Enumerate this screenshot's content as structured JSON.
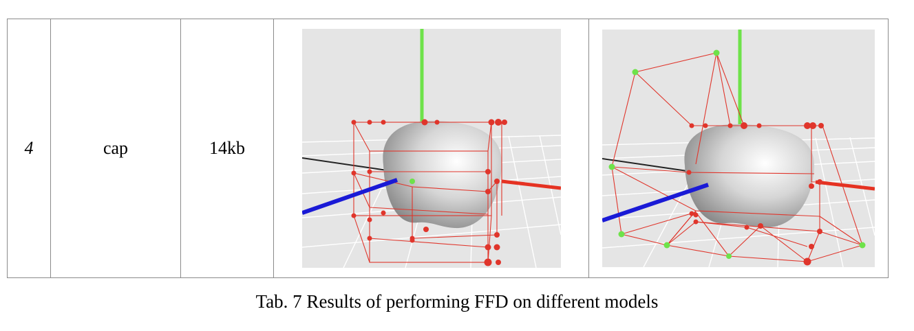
{
  "table": {
    "row": {
      "id": "4",
      "name": "cap",
      "size": "14kb"
    },
    "images": [
      {
        "state": "original control lattice"
      },
      {
        "state": "deformed control lattice"
      }
    ]
  },
  "caption": "Tab. 7 Results of performing FFD on different models",
  "colors": {
    "background": "#e5e5e5",
    "lattice": "#e0352b",
    "selected_point": "#6ee24a",
    "axis_x": "#e53222",
    "axis_y": "#6ee24a",
    "axis_z": "#1a1ad6"
  }
}
